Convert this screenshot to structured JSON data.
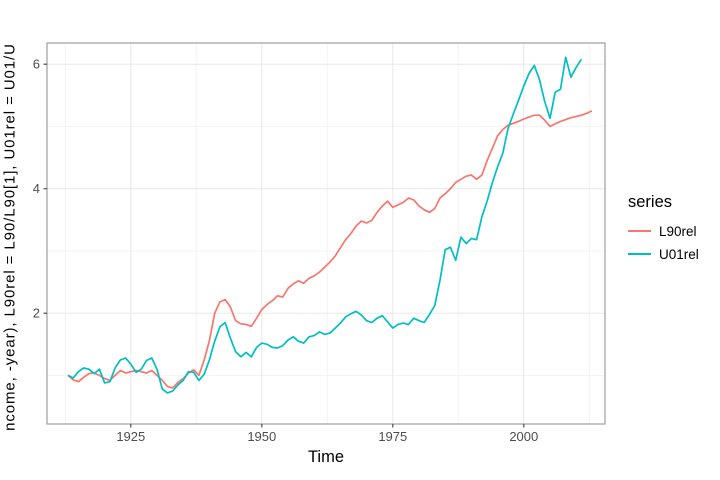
{
  "chart_data": {
    "type": "line",
    "title": "",
    "xlabel": "Time",
    "ylabel": "ncome, -year), L90rel = L90/L90[1], U01rel = U01/U",
    "xlim": [
      1909,
      2015.5
    ],
    "ylim": [
      0.22,
      6.34
    ],
    "x_ticks": [
      1925,
      1950,
      1975,
      2000
    ],
    "y_ticks": [
      2,
      4,
      6
    ],
    "x_minor_gridlines": [
      1912.5,
      1937.5,
      1962.5,
      1987.5,
      2012.5
    ],
    "y_minor_gridlines": [
      1,
      3,
      5
    ],
    "grid": "on",
    "legend_position": "right",
    "series": [
      {
        "name": "L90rel",
        "color": "#F8766D",
        "start_year": 1913,
        "values": [
          1.0,
          0.93,
          0.9,
          0.97,
          1.03,
          1.04,
          1.0,
          0.95,
          0.92,
          1.0,
          1.08,
          1.04,
          1.06,
          1.08,
          1.06,
          1.04,
          1.08,
          1.0,
          0.92,
          0.82,
          0.8,
          0.89,
          0.95,
          1.04,
          1.09,
          1.0,
          1.25,
          1.56,
          2.0,
          2.18,
          2.22,
          2.1,
          1.88,
          1.83,
          1.82,
          1.79,
          1.92,
          2.06,
          2.14,
          2.2,
          2.28,
          2.26,
          2.4,
          2.47,
          2.52,
          2.48,
          2.56,
          2.6,
          2.66,
          2.74,
          2.82,
          2.92,
          3.05,
          3.18,
          3.28,
          3.4,
          3.48,
          3.45,
          3.49,
          3.62,
          3.72,
          3.8,
          3.7,
          3.74,
          3.78,
          3.85,
          3.82,
          3.72,
          3.66,
          3.62,
          3.68,
          3.85,
          3.92,
          4.0,
          4.1,
          4.15,
          4.2,
          4.22,
          4.15,
          4.22,
          4.45,
          4.65,
          4.85,
          4.95,
          5.02,
          5.05,
          5.08,
          5.12,
          5.15,
          5.18,
          5.18,
          5.1,
          5.0,
          5.04,
          5.08,
          5.11,
          5.14,
          5.16,
          5.18,
          5.21,
          5.25
        ]
      },
      {
        "name": "U01rel",
        "color": "#00BFC4",
        "start_year": 1913,
        "values": [
          1.0,
          0.96,
          1.06,
          1.12,
          1.1,
          1.03,
          1.1,
          0.88,
          0.9,
          1.12,
          1.25,
          1.28,
          1.18,
          1.05,
          1.1,
          1.24,
          1.28,
          1.1,
          0.78,
          0.72,
          0.75,
          0.85,
          0.92,
          1.06,
          1.05,
          0.92,
          1.02,
          1.25,
          1.55,
          1.78,
          1.85,
          1.6,
          1.38,
          1.3,
          1.37,
          1.3,
          1.45,
          1.52,
          1.5,
          1.45,
          1.44,
          1.48,
          1.57,
          1.62,
          1.55,
          1.52,
          1.62,
          1.64,
          1.7,
          1.66,
          1.68,
          1.76,
          1.84,
          1.94,
          1.99,
          2.03,
          1.97,
          1.88,
          1.85,
          1.92,
          1.96,
          1.86,
          1.76,
          1.82,
          1.84,
          1.82,
          1.92,
          1.88,
          1.85,
          1.98,
          2.12,
          2.53,
          3.02,
          3.06,
          2.85,
          3.22,
          3.12,
          3.2,
          3.18,
          3.55,
          3.8,
          4.1,
          4.35,
          4.57,
          4.97,
          5.2,
          5.42,
          5.65,
          5.85,
          5.98,
          5.75,
          5.4,
          5.13,
          5.55,
          5.6,
          6.11,
          5.79,
          5.95,
          6.08
        ]
      }
    ]
  },
  "legend": {
    "title": "series",
    "items": [
      {
        "label": "L90rel",
        "color": "#F8766D"
      },
      {
        "label": "U01rel",
        "color": "#00BFC4"
      }
    ]
  },
  "style_colors": {
    "panel_border": "#9e9e9e",
    "grid_major": "#e8e8e8",
    "grid_minor": "#f3f3f3",
    "tick_label": "#4d4d4d",
    "axis_title": "#000000"
  }
}
